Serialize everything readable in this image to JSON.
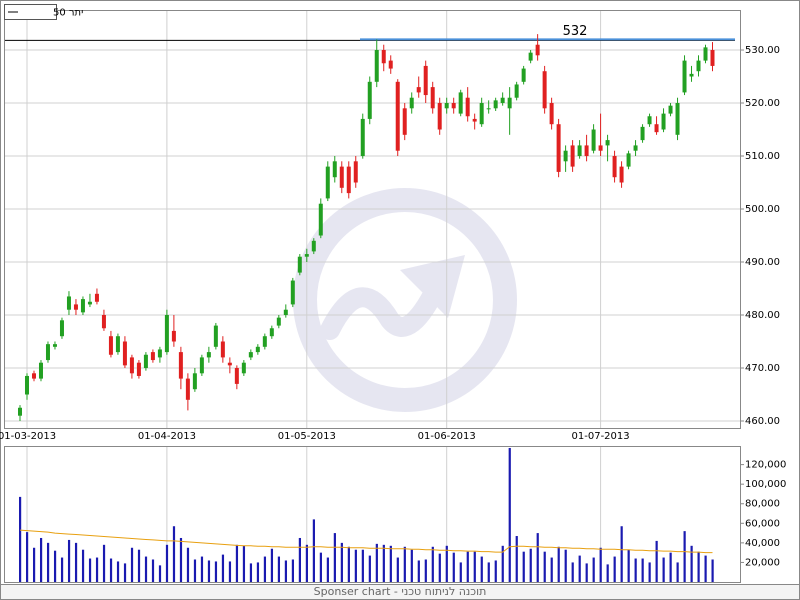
{
  "chart_data": [
    {
      "type": "candlestick",
      "name": "יתר 50",
      "up_color": "#22a022",
      "down_color": "#e02020",
      "categories": [
        null,
        "01-03-2013",
        null,
        null,
        null,
        null,
        null,
        null,
        null,
        null,
        null,
        null,
        null,
        null,
        null,
        null,
        null,
        null,
        null,
        null,
        null,
        "01-04-2013",
        null,
        null,
        null,
        null,
        null,
        null,
        null,
        null,
        null,
        null,
        null,
        null,
        null,
        null,
        null,
        null,
        null,
        null,
        null,
        "01-05-2013",
        null,
        null,
        null,
        null,
        null,
        null,
        null,
        null,
        null,
        null,
        null,
        null,
        null,
        null,
        null,
        null,
        null,
        null,
        null,
        "01-06-2013",
        null,
        null,
        null,
        null,
        null,
        null,
        null,
        null,
        null,
        null,
        null,
        null,
        null,
        null,
        null,
        null,
        null,
        null,
        null,
        null,
        null,
        "01-07-2013",
        null,
        null,
        null,
        null,
        null,
        null,
        null,
        null,
        null,
        null,
        null,
        null,
        null,
        null,
        null,
        null
      ],
      "open": [
        461,
        465,
        469,
        468,
        471.5,
        474,
        476,
        481,
        482,
        480.5,
        482,
        484,
        480,
        476,
        473,
        475,
        472,
        471,
        470,
        473,
        472,
        473,
        477,
        473,
        468,
        466,
        469,
        472,
        474,
        475,
        471,
        470,
        469,
        472,
        473,
        474,
        476,
        478,
        480,
        482,
        488,
        491,
        492,
        495,
        502,
        506,
        508,
        508,
        509,
        510,
        517,
        524,
        530,
        528,
        524,
        519,
        519,
        523,
        527,
        523,
        520,
        519,
        520,
        518,
        521,
        517,
        516,
        519,
        519,
        520,
        519,
        521,
        524,
        528,
        531,
        526,
        520,
        516,
        509,
        512,
        510,
        512,
        511,
        512,
        512,
        510,
        508,
        508,
        511,
        513,
        516,
        516,
        515,
        518,
        514,
        522,
        525,
        526,
        528,
        530
      ],
      "high": [
        463,
        469,
        469.5,
        471.5,
        475,
        475,
        479.5,
        484.5,
        483,
        483.5,
        484,
        485,
        481,
        477,
        476.5,
        476,
        472.5,
        471.5,
        473,
        473.5,
        474,
        481,
        480,
        474,
        469,
        470,
        472.5,
        474,
        478.5,
        476,
        472,
        470.5,
        471.5,
        473.5,
        474.5,
        476.5,
        478,
        480,
        482,
        487,
        491.5,
        492.5,
        494.5,
        502,
        509,
        510,
        509,
        509,
        510,
        518,
        525,
        532,
        531,
        529,
        524.5,
        520,
        522,
        525,
        528,
        524,
        521,
        521,
        521,
        522.5,
        523,
        518,
        521,
        520.5,
        521,
        522,
        523,
        524,
        527,
        530,
        533,
        527,
        521,
        517,
        512,
        513,
        513,
        514,
        516,
        518,
        514,
        511,
        509,
        511,
        513,
        516,
        518,
        517.5,
        519,
        520,
        521,
        529,
        527,
        529,
        531,
        531.5
      ],
      "low": [
        460,
        464,
        467.5,
        467.5,
        471,
        473.5,
        475.5,
        480,
        480,
        480,
        481.5,
        482,
        477,
        472,
        472.5,
        470,
        468,
        468,
        469.5,
        471,
        471,
        472.5,
        474,
        466,
        462,
        465.5,
        468.5,
        471,
        473.5,
        471,
        469,
        466,
        468.5,
        471.5,
        472.5,
        473.5,
        475.5,
        477.5,
        479.5,
        481.5,
        487.5,
        490,
        491.5,
        494.5,
        501.5,
        505,
        503,
        502,
        504,
        509.5,
        516,
        523,
        526,
        525.5,
        510,
        513,
        518,
        521,
        520,
        518,
        514,
        518,
        518,
        517.5,
        516.5,
        515,
        515.5,
        518,
        518.5,
        519.5,
        514,
        520.5,
        523.5,
        527.5,
        528,
        518,
        515,
        506,
        507,
        507,
        509.5,
        509,
        510.5,
        510,
        509,
        505,
        504,
        507.5,
        510,
        512.5,
        515.5,
        514,
        514.5,
        517.5,
        513,
        521.5,
        524,
        525,
        527.5,
        526
      ],
      "close": [
        462.5,
        468.5,
        468,
        471,
        474.5,
        474.5,
        479,
        483.5,
        481,
        483,
        482.5,
        482.5,
        477.5,
        472.5,
        476,
        470.5,
        469,
        468.5,
        472.5,
        471.5,
        473.5,
        480,
        475,
        468,
        464,
        469,
        472,
        473,
        478,
        472,
        470.5,
        467,
        471,
        473,
        474,
        476,
        477.5,
        479.5,
        481,
        486.5,
        491,
        491.5,
        494,
        501,
        508,
        509,
        504,
        503,
        505,
        517,
        524,
        530,
        527.5,
        526.5,
        511,
        514,
        521,
        522,
        521.5,
        519,
        515,
        520,
        519,
        522,
        517.5,
        516.5,
        520,
        519,
        520.5,
        521,
        521,
        523.5,
        526.5,
        529.5,
        529,
        519,
        516,
        507,
        511,
        508,
        512,
        510,
        515,
        511,
        513,
        506,
        505,
        510.5,
        512,
        515.5,
        517.5,
        514.5,
        518,
        519.5,
        520,
        528,
        525.5,
        528,
        530.5,
        527
      ],
      "ylim": [
        458.68,
        537.55
      ],
      "yticks": [
        {
          "value": 460,
          "label": "460.00"
        },
        {
          "value": 470,
          "label": "470.00"
        },
        {
          "value": 480,
          "label": "480.00"
        },
        {
          "value": 490,
          "label": "490.00"
        },
        {
          "value": 500,
          "label": "500.00"
        },
        {
          "value": 510,
          "label": "510.00"
        },
        {
          "value": 520,
          "label": "520.00"
        },
        {
          "value": 530,
          "label": "530.00"
        }
      ],
      "grid": true,
      "hline": {
        "value": 532,
        "color": "#4a90d9"
      }
    },
    {
      "type": "bar",
      "color": "#1a1ab0",
      "values": [
        87000,
        51000,
        35000,
        45000,
        40000,
        32000,
        25000,
        43000,
        40000,
        33000,
        24000,
        25000,
        38000,
        24000,
        21000,
        19000,
        35000,
        33000,
        26000,
        23000,
        17000,
        38000,
        57000,
        45000,
        35000,
        23000,
        26000,
        22000,
        21000,
        28000,
        21000,
        38000,
        37000,
        19000,
        20000,
        26000,
        34000,
        26000,
        22000,
        23000,
        45000,
        38000,
        64000,
        30000,
        25000,
        50000,
        40000,
        36000,
        33000,
        33000,
        27000,
        39000,
        38000,
        37000,
        25000,
        36000,
        33000,
        22000,
        23000,
        36000,
        29000,
        37000,
        30000,
        20000,
        31000,
        31000,
        26000,
        20000,
        22000,
        37000,
        137000,
        47000,
        31000,
        34000,
        50000,
        31000,
        25000,
        36000,
        33000,
        20000,
        27000,
        19000,
        25000,
        35000,
        18000,
        26000,
        57000,
        33000,
        24000,
        24000,
        20000,
        42000,
        25000,
        30000,
        20000,
        52000,
        37000,
        31000,
        27000,
        23000
      ],
      "ma_color": "#e8a010",
      "ma": [
        53000,
        52500,
        52000,
        51500,
        51000,
        50000,
        49500,
        49000,
        48500,
        48000,
        47500,
        47000,
        46500,
        46000,
        45500,
        45000,
        44500,
        44000,
        43500,
        43000,
        42500,
        42000,
        42000,
        41500,
        41000,
        40500,
        40000,
        39500,
        39000,
        38500,
        38000,
        37500,
        37000,
        37000,
        36500,
        36500,
        36000,
        36000,
        35500,
        35500,
        35500,
        35500,
        36000,
        36000,
        35500,
        35500,
        35500,
        35000,
        35000,
        35000,
        34500,
        34500,
        34500,
        34000,
        34000,
        34000,
        33500,
        33500,
        33000,
        33000,
        32500,
        32500,
        32000,
        32000,
        31500,
        31500,
        31000,
        31000,
        30500,
        30500,
        36000,
        36500,
        36500,
        36000,
        36000,
        35500,
        35500,
        35000,
        35000,
        34500,
        34500,
        34000,
        34000,
        33500,
        33500,
        33500,
        33000,
        33000,
        32500,
        32500,
        32000,
        32000,
        31500,
        31500,
        31000,
        31000,
        30500,
        30500,
        30000,
        30000
      ],
      "ylim": [
        0,
        138000
      ],
      "yticks": [
        {
          "value": 20000,
          "label": "20,000"
        },
        {
          "value": 40000,
          "label": "40,000"
        },
        {
          "value": 60000,
          "label": "60,000"
        },
        {
          "value": 80000,
          "label": "80,000"
        },
        {
          "value": 100000,
          "label": "100,000"
        },
        {
          "value": 120000,
          "label": "120,000"
        }
      ]
    }
  ],
  "footer": "Sponser chart - תוכנה לניתוח טכני"
}
